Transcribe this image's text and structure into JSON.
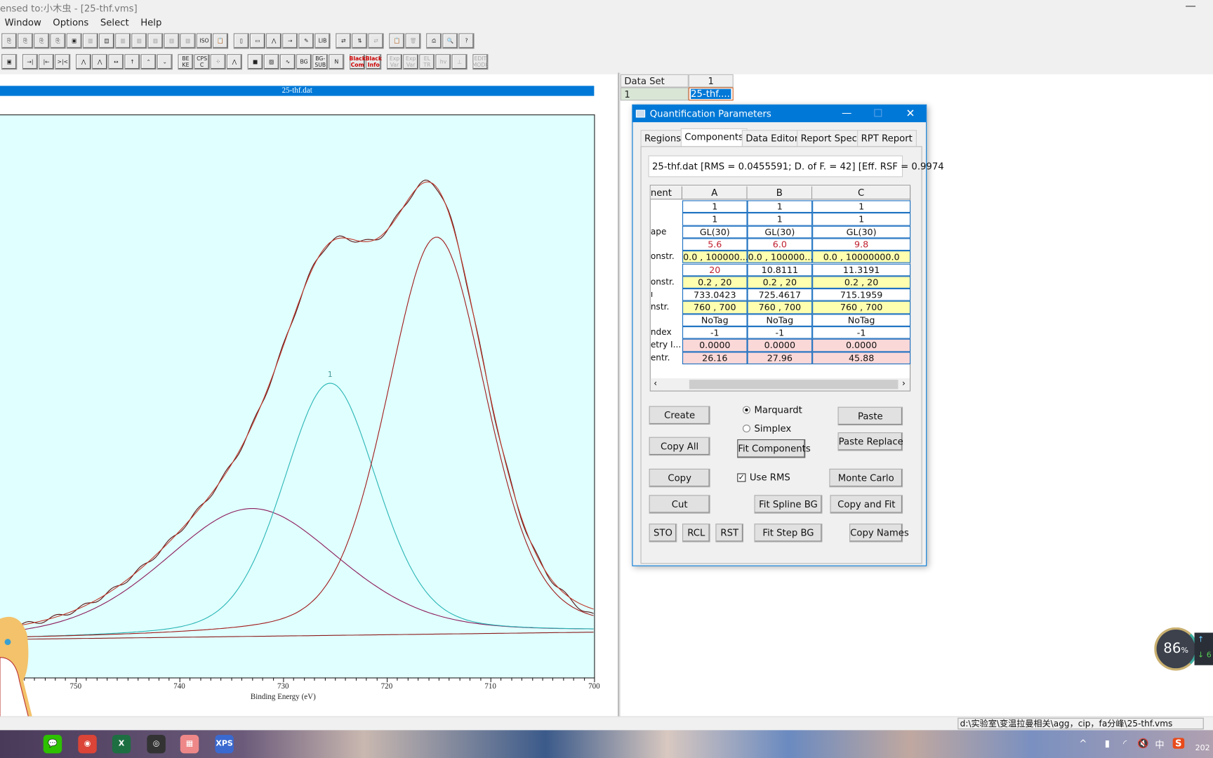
{
  "window": {
    "title": "ensed to:小木虫 - [25-thf.vms]",
    "minimize": "—"
  },
  "menu": [
    "Window",
    "Options",
    "Select",
    "Help"
  ],
  "toolbar1": [
    {
      "icon": "copy-doc-icon",
      "g": "⎘"
    },
    {
      "icon": "copy-doc2-icon",
      "g": "⎘"
    },
    {
      "icon": "copy-doc3-icon",
      "g": "⎘"
    },
    {
      "icon": "copy-doc4-icon",
      "g": "⎘"
    },
    {
      "icon": "doc-icon",
      "g": "▣"
    },
    {
      "icon": "disabled-icon",
      "g": "▦",
      "dim": true
    },
    {
      "icon": "pages-icon",
      "g": "▤"
    },
    {
      "icon": "disabled2-icon",
      "g": "▦",
      "dim": true
    },
    {
      "icon": "disabled3-icon",
      "g": "▦",
      "dim": true
    },
    {
      "icon": "disabled4-icon",
      "g": "▦",
      "dim": true
    },
    {
      "icon": "disabled5-icon",
      "g": "▦",
      "dim": true
    },
    {
      "icon": "disabled6-icon",
      "g": "▦",
      "dim": true
    },
    {
      "icon": "iso-icon",
      "g": "ISO"
    },
    {
      "icon": "clipboard-icon",
      "g": "📋"
    },
    {
      "icon": "window-icon",
      "g": "▯",
      "gap": true
    },
    {
      "icon": "display-icon",
      "g": "▭"
    },
    {
      "icon": "spectrum-icon",
      "g": "⋀"
    },
    {
      "icon": "arrow-right-icon",
      "g": "→"
    },
    {
      "icon": "pen-icon",
      "g": "✎"
    },
    {
      "icon": "library-icon",
      "g": "LIB"
    },
    {
      "icon": "transfer-icon",
      "g": "⇄",
      "gap": true
    },
    {
      "icon": "transfer2-icon",
      "g": "⇅"
    },
    {
      "icon": "transfer3-icon",
      "g": "⇄",
      "dim": true
    },
    {
      "icon": "clipboard2-icon",
      "g": "📋",
      "gap": true
    },
    {
      "icon": "trash-icon",
      "g": "🗑",
      "dim": true
    },
    {
      "icon": "print-icon",
      "g": "⎙",
      "gap": true
    },
    {
      "icon": "print-preview-icon",
      "g": "🔍"
    },
    {
      "icon": "help-icon",
      "g": "?"
    }
  ],
  "toolbar2": [
    {
      "icon": "frame-icon",
      "g": "▣"
    },
    {
      "icon": "align-right-icon",
      "g": "→|",
      "gap": true
    },
    {
      "icon": "align-left-icon",
      "g": "|←"
    },
    {
      "icon": "merge-icon",
      "g": ">|<"
    },
    {
      "icon": "peak-right-icon",
      "g": "⋀",
      "gap": true
    },
    {
      "icon": "peak-left-icon",
      "g": "⋀"
    },
    {
      "icon": "expand-icon",
      "g": "↔"
    },
    {
      "icon": "peak-up-icon",
      "g": "↑"
    },
    {
      "icon": "chevron-up-icon",
      "g": "⌃"
    },
    {
      "icon": "chevron-down-icon",
      "g": "⌄"
    },
    {
      "icon": "be-ke-icon",
      "g": "BE KE",
      "gap": true
    },
    {
      "icon": "cps-icon",
      "g": "CPS C"
    },
    {
      "icon": "markers-icon",
      "g": "⁘"
    },
    {
      "icon": "spectrum2-icon",
      "g": "⋀"
    },
    {
      "icon": "cyan-box-icon",
      "g": "■",
      "gap": true
    },
    {
      "icon": "chart-icon",
      "g": "▨"
    },
    {
      "icon": "wave-icon",
      "g": "∿"
    },
    {
      "icon": "bg-icon",
      "g": "BG"
    },
    {
      "icon": "bg-sub-icon",
      "g": "BG- SUB"
    },
    {
      "icon": "normalize-icon",
      "g": "N"
    },
    {
      "icon": "black-comment-icon",
      "g": "Black Com",
      "red": true,
      "gap": true
    },
    {
      "icon": "black-info-icon",
      "g": "Black Info",
      "red": true
    },
    {
      "icon": "exp-var-icon",
      "g": "Exp Var",
      "dim": true,
      "gap": true
    },
    {
      "icon": "exp-var2-icon",
      "g": "Exp Var",
      "dim": true
    },
    {
      "icon": "el-tr-icon",
      "g": "EL TR",
      "dim": true
    },
    {
      "icon": "hv-icon",
      "g": "hv",
      "dim": true
    },
    {
      "icon": "stamp-icon",
      "g": "⊥",
      "dim": true
    },
    {
      "icon": "edit-mode-icon",
      "g": "EDIT MODE",
      "dim": true,
      "gap": true
    }
  ],
  "graph": {
    "title": "25-thf.dat",
    "peak_label": "1"
  },
  "chart_data": {
    "type": "line",
    "title": "",
    "xlabel": "Binding Energy (eV)",
    "ylabel": "",
    "xlim": [
      757.3,
      700
    ],
    "x_reversed": true,
    "xticks": [
      "750",
      "740",
      "730",
      "720",
      "710",
      "700"
    ],
    "ylim_relative": [
      0,
      1
    ],
    "grid": false,
    "line_shape": "GL(30)",
    "background": {
      "color": "#8b1a1a",
      "start": 0.069,
      "end": 0.082
    },
    "series": [
      {
        "id": "A",
        "position": 733.04,
        "fwhm": 20,
        "height": 0.227,
        "color": "#8b1a5a"
      },
      {
        "id": "B",
        "position": 725.46,
        "fwhm": 10.81,
        "height": 0.448,
        "color": "#2ab5b5"
      },
      {
        "id": "C",
        "position": 715.2,
        "fwhm": 11.32,
        "height": 0.705,
        "color": "#a01818"
      }
    ],
    "envelope_color": "#c0392b",
    "data_color": "#5a1414"
  },
  "dataset_grid": {
    "header": [
      "Data Set",
      "1"
    ],
    "row": [
      "1",
      "25-thf...."
    ]
  },
  "dialog": {
    "title": "Quantification Parameters",
    "tabs": [
      "Regions",
      "Components",
      "Data Editor",
      "Report Spec.",
      "RPT Report"
    ],
    "active_tab": "Components",
    "info": "25-thf.dat [RMS = 0.0455591; D. of F. = 42] [Eff. RSF = 0.9974",
    "table": {
      "headers": [
        "nent",
        "A",
        "B",
        "C"
      ],
      "rows": [
        {
          "label": "",
          "cells": [
            "1",
            "1",
            "1"
          ],
          "style": ""
        },
        {
          "label": "",
          "cells": [
            "1",
            "1",
            "1"
          ],
          "style": ""
        },
        {
          "label": "ape",
          "cells": [
            "GL(30)",
            "GL(30)",
            "GL(30)"
          ],
          "style": ""
        },
        {
          "label": "",
          "cells": [
            "5.6",
            "6.0",
            "9.8"
          ],
          "style": "r"
        },
        {
          "label": "onstr.",
          "cells": [
            "0.0 , 100000...",
            "0.0 , 100000...",
            "0.0 , 10000000.0"
          ],
          "style": "y"
        },
        {
          "label": "",
          "cells": [
            "20",
            "10.8111",
            "11.3191"
          ],
          "style": "",
          "red": [
            0
          ]
        },
        {
          "label": "onstr.",
          "cells": [
            "0.2 , 20",
            "0.2 , 20",
            "0.2 , 20"
          ],
          "style": "y"
        },
        {
          "label": "ı",
          "cells": [
            "733.0423",
            "725.4617",
            "715.1959"
          ],
          "style": ""
        },
        {
          "label": "nstr.",
          "cells": [
            "760 , 700",
            "760 , 700",
            "760 , 700"
          ],
          "style": "y"
        },
        {
          "label": "",
          "cells": [
            "NoTag",
            "NoTag",
            "NoTag"
          ],
          "style": ""
        },
        {
          "label": "ndex",
          "cells": [
            "-1",
            "-1",
            "-1"
          ],
          "style": ""
        },
        {
          "label": "etry I...",
          "cells": [
            "0.0000",
            "0.0000",
            "0.0000"
          ],
          "style": "p"
        },
        {
          "label": "entr.",
          "cells": [
            "26.16",
            "27.96",
            "45.88"
          ],
          "style": "p"
        }
      ]
    },
    "buttons": {
      "create": "Create",
      "copy_all": "Copy All",
      "copy": "Copy",
      "cut": "Cut",
      "sto": "STO",
      "rcl": "RCL",
      "rst": "RST",
      "fit_components": "Fit Components",
      "fit_spline_bg": "Fit Spline BG",
      "fit_step_bg": "Fit Step BG",
      "paste": "Paste",
      "paste_replace": "Paste Replace",
      "monte_carlo": "Monte Carlo",
      "copy_and_fit": "Copy and Fit",
      "copy_names": "Copy Names"
    },
    "options": {
      "marquardt": "Marquardt",
      "simplex": "Simplex",
      "method_selected": "Marquardt",
      "use_rms": "Use RMS",
      "use_rms_checked": true
    }
  },
  "status": {
    "path": "d:\\实验室\\变温拉曼相关\\agg，cip，fa分峰\\25-thf.vms"
  },
  "widget": {
    "percent": "86",
    "unit": "%",
    "up": "↑",
    "down": "↓ 6"
  },
  "taskbar": {
    "apps": [
      {
        "icon": "wechat-icon",
        "g": "💬",
        "c": "#2dc100"
      },
      {
        "icon": "chrome-icon",
        "g": "◉",
        "c": "#db4437"
      },
      {
        "icon": "excel-icon",
        "g": "X",
        "c": "#1d6f42"
      },
      {
        "icon": "obs-icon",
        "g": "◎",
        "c": "#333"
      },
      {
        "icon": "app-icon",
        "g": "▦",
        "c": "#e88"
      },
      {
        "icon": "casaxps-icon",
        "g": "XPS",
        "c": "#3a6ad0"
      }
    ],
    "tray": {
      "chevron": "^",
      "ime": "中",
      "date": "202"
    }
  }
}
